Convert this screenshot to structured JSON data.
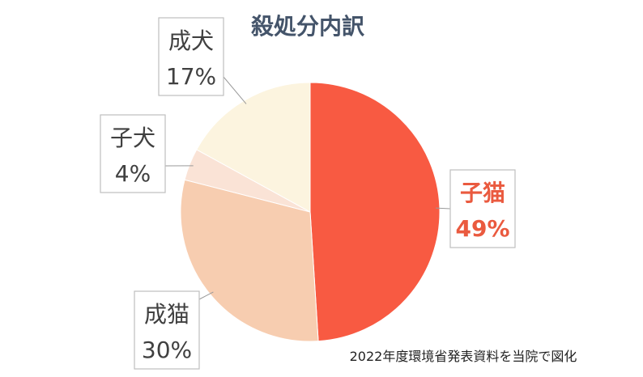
{
  "chart_data": {
    "type": "pie",
    "title": "殺処分内訳",
    "slices": [
      {
        "label": "子猫",
        "value": 49,
        "value_label": "49%",
        "color": "#f85a42"
      },
      {
        "label": "成猫",
        "value": 30,
        "value_label": "30%",
        "color": "#f7cdb0"
      },
      {
        "label": "子犬",
        "value": 4,
        "value_label": "4%",
        "color": "#fae3d6"
      },
      {
        "label": "成犬",
        "value": 17,
        "value_label": "17%",
        "color": "#fcf4df"
      }
    ],
    "start": "12 o'clock",
    "direction": "clockwise",
    "legend": "none (callout labels)"
  },
  "source_note": "2022年度環境省発表資料を当院で図化"
}
